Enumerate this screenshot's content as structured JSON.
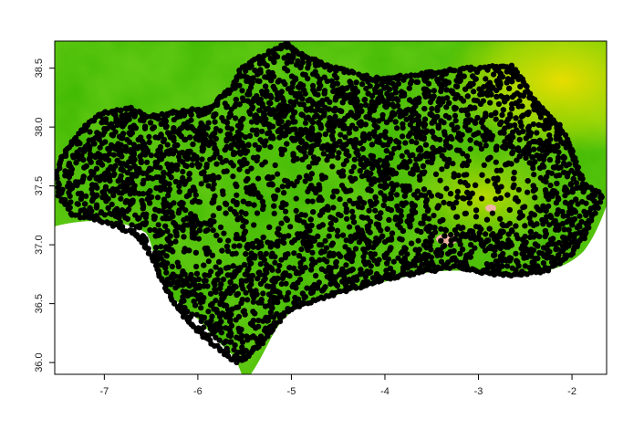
{
  "chart_data": {
    "type": "map-raster",
    "title": "",
    "xlabel": "",
    "ylabel": "",
    "xlim": [
      -7.53,
      -1.63
    ],
    "ylim": [
      35.9,
      38.73
    ],
    "x_ticks": [
      {
        "value": -7,
        "label": "-7"
      },
      {
        "value": -6,
        "label": "-6"
      },
      {
        "value": -5,
        "label": "-5"
      },
      {
        "value": -4,
        "label": "-4"
      },
      {
        "value": -3,
        "label": "-3"
      },
      {
        "value": -2,
        "label": "-2"
      }
    ],
    "y_ticks": [
      {
        "value": 36.0,
        "label": "36.0"
      },
      {
        "value": 36.5,
        "label": "36.5"
      },
      {
        "value": 37.0,
        "label": "37.0"
      },
      {
        "value": 37.5,
        "label": "37.5"
      },
      {
        "value": 38.0,
        "label": "38.0"
      },
      {
        "value": 38.5,
        "label": "38.5"
      }
    ],
    "raster_colors": {
      "low": "#2cb200",
      "mid": "#66c800",
      "high": "#c6e000",
      "peak": "#eed400",
      "summit": "#f1b5a6"
    },
    "points_color": "#000000",
    "grid": false,
    "legend": "none"
  }
}
